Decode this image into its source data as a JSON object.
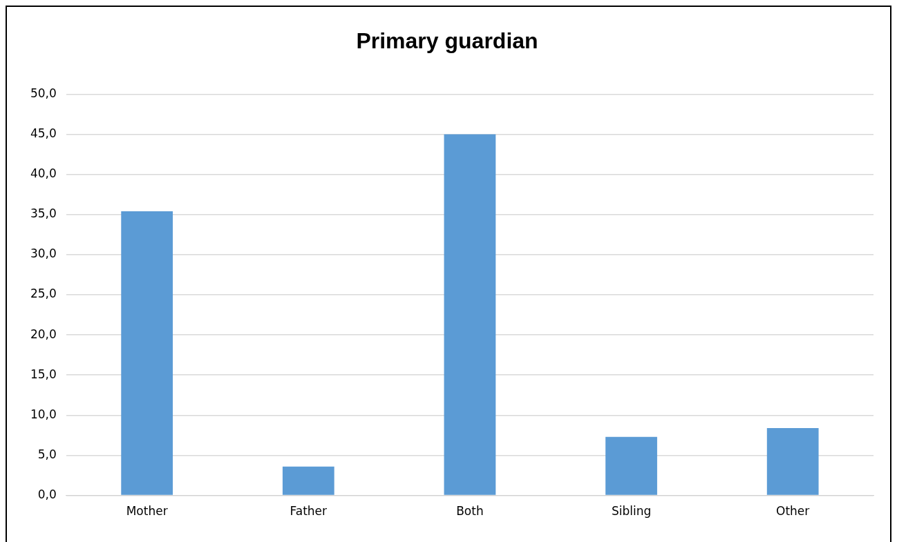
{
  "chart_data": {
    "type": "bar",
    "title": "Primary guardian",
    "categories": [
      "Mother",
      "Father",
      "Both",
      "Sibling",
      "Other"
    ],
    "values": [
      35.4,
      3.6,
      45.0,
      7.3,
      8.4
    ],
    "color": "#5b9bd5",
    "ylim": [
      0,
      50
    ],
    "yticks": [
      {
        "value": 0,
        "label": "0,0"
      },
      {
        "value": 5,
        "label": "5,0"
      },
      {
        "value": 10,
        "label": "10,0"
      },
      {
        "value": 15,
        "label": "15,0"
      },
      {
        "value": 20,
        "label": "20,0"
      },
      {
        "value": 25,
        "label": "25,0"
      },
      {
        "value": 30,
        "label": "30,0"
      },
      {
        "value": 35,
        "label": "35,0"
      },
      {
        "value": 40,
        "label": "40,0"
      },
      {
        "value": 45,
        "label": "45,0"
      },
      {
        "value": 50,
        "label": "50,0"
      }
    ],
    "grid": "y"
  }
}
